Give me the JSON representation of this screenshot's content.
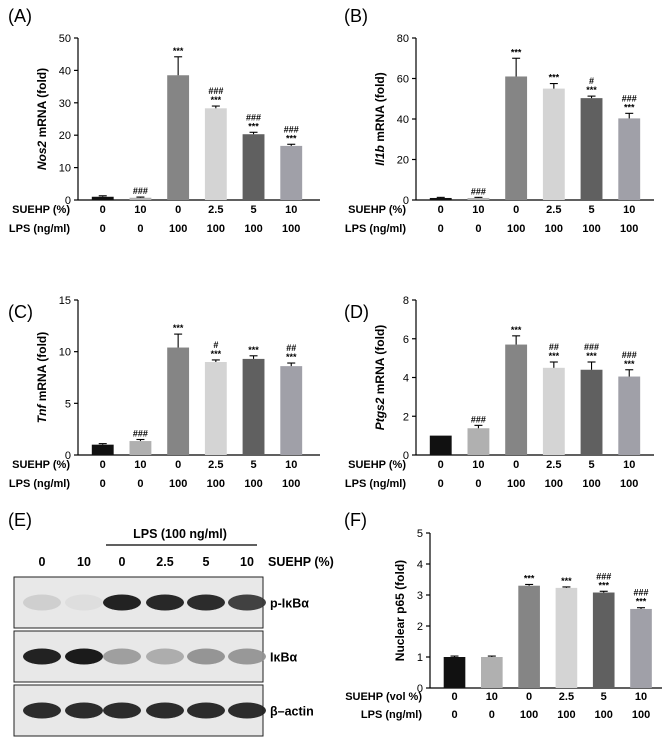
{
  "chart_data": [
    {
      "panel": "(A)",
      "type": "bar",
      "ylabel_italic": "Nos2",
      "ylabel_rest": " mRNA  (fold)",
      "ylim": [
        0,
        50
      ],
      "yticks": [
        "0",
        "10",
        "20",
        "30",
        "40",
        "50"
      ],
      "values": [
        1.0,
        0.7,
        38.5,
        28.3,
        20.3,
        16.7
      ],
      "errors": [
        0.3,
        0.2,
        5.7,
        0.7,
        0.6,
        0.5
      ],
      "sig_top": [
        "",
        "",
        "",
        "###",
        "###",
        "###"
      ],
      "sig_bottom": [
        "",
        "###",
        "***",
        "***",
        "***",
        "***"
      ],
      "colors": [
        "#111111",
        "#b0b0b0",
        "#858585",
        "#d4d4d4",
        "#606060",
        "#a0a0a8"
      ],
      "row_labels": [
        "SUEHP (%)",
        "LPS (ng/ml)"
      ],
      "row1": [
        "0",
        "10",
        "0",
        "2.5",
        "5",
        "10"
      ],
      "row2": [
        "0",
        "0",
        "100",
        "100",
        "100",
        "100"
      ]
    },
    {
      "panel": "(B)",
      "type": "bar",
      "ylabel_italic": "Il1b",
      "ylabel_rest": "  mRNA  (fold)",
      "ylim": [
        0,
        80
      ],
      "yticks": [
        "0",
        "20",
        "40",
        "60",
        "80"
      ],
      "values": [
        1.0,
        1.0,
        61.0,
        55.0,
        50.3,
        40.3
      ],
      "errors": [
        0.3,
        0.3,
        9.0,
        2.5,
        1.0,
        2.5
      ],
      "sig_top": [
        "",
        "",
        "",
        "",
        "#",
        "###"
      ],
      "sig_bottom": [
        "",
        "###",
        "***",
        "***",
        "***",
        "***"
      ],
      "colors": [
        "#111111",
        "#b0b0b0",
        "#858585",
        "#d4d4d4",
        "#606060",
        "#a0a0a8"
      ],
      "row_labels": [
        "SUEHP (%)",
        "LPS (ng/ml)"
      ],
      "row1": [
        "0",
        "10",
        "0",
        "2.5",
        "5",
        "10"
      ],
      "row2": [
        "0",
        "0",
        "100",
        "100",
        "100",
        "100"
      ]
    },
    {
      "panel": "(C)",
      "type": "bar",
      "ylabel_italic": "Tnf",
      "ylabel_rest": "  mRNA  (fold)",
      "ylim": [
        0,
        15
      ],
      "yticks": [
        "0",
        "5",
        "10",
        "15"
      ],
      "values": [
        1.0,
        1.35,
        10.4,
        9.0,
        9.3,
        8.6
      ],
      "errors": [
        0.1,
        0.15,
        1.3,
        0.2,
        0.3,
        0.3
      ],
      "sig_top": [
        "",
        "",
        "",
        "#",
        "",
        "##"
      ],
      "sig_bottom": [
        "",
        "###",
        "***",
        "***",
        "***",
        "***"
      ],
      "colors": [
        "#111111",
        "#b0b0b0",
        "#858585",
        "#d4d4d4",
        "#606060",
        "#a0a0a8"
      ],
      "row_labels": [
        "SUEHP (%)",
        "LPS (ng/ml)"
      ],
      "row1": [
        "0",
        "10",
        "0",
        "2.5",
        "5",
        "10"
      ],
      "row2": [
        "0",
        "0",
        "100",
        "100",
        "100",
        "100"
      ]
    },
    {
      "panel": "(D)",
      "type": "bar",
      "ylabel_italic": "Ptgs2",
      "ylabel_rest": "  mRNA  (fold)",
      "ylim": [
        0,
        8
      ],
      "yticks": [
        "0",
        "2",
        "4",
        "6",
        "8"
      ],
      "values": [
        1.0,
        1.38,
        5.7,
        4.5,
        4.4,
        4.05
      ],
      "errors": [
        0.0,
        0.15,
        0.45,
        0.3,
        0.4,
        0.35
      ],
      "sig_top": [
        "",
        "",
        "",
        "##",
        "###",
        "###"
      ],
      "sig_bottom": [
        "",
        "###",
        "***",
        "***",
        "***",
        "***"
      ],
      "colors": [
        "#111111",
        "#b0b0b0",
        "#858585",
        "#d4d4d4",
        "#606060",
        "#a0a0a8"
      ],
      "row_labels": [
        "SUEHP (%)",
        "LPS (ng/ml)"
      ],
      "row1": [
        "0",
        "10",
        "0",
        "2.5",
        "5",
        "10"
      ],
      "row2": [
        "0",
        "0",
        "100",
        "100",
        "100",
        "100"
      ]
    },
    {
      "panel": "(F)",
      "type": "bar",
      "ylabel_italic": "",
      "ylabel_rest": "Nuclear p65 (fold)",
      "ylim": [
        0,
        5
      ],
      "yticks": [
        "0",
        "1",
        "2",
        "3",
        "4",
        "5"
      ],
      "values": [
        1.0,
        1.0,
        3.3,
        3.23,
        3.08,
        2.55
      ],
      "errors": [
        0.03,
        0.03,
        0.04,
        0.03,
        0.04,
        0.04
      ],
      "sig_top": [
        "",
        "",
        "",
        "",
        "###",
        "###"
      ],
      "sig_bottom": [
        "",
        "",
        "***",
        "***",
        "***",
        "***"
      ],
      "colors": [
        "#111111",
        "#b0b0b0",
        "#858585",
        "#d4d4d4",
        "#606060",
        "#a0a0a8"
      ],
      "row_labels": [
        "SUEHP (vol %)",
        "LPS (ng/ml)"
      ],
      "row1": [
        "0",
        "10",
        "0",
        "2.5",
        "5",
        "10"
      ],
      "row2": [
        "0",
        "0",
        "100",
        "100",
        "100",
        "100"
      ]
    }
  ],
  "western_blot": {
    "panel": "(E)",
    "lps_header": "LPS (100 ng/ml)",
    "lane_labels": [
      "0",
      "10",
      "0",
      "2.5",
      "5",
      "10"
    ],
    "treatment_label": "SUEHP (%)",
    "blots": [
      {
        "label": "p-IκBα",
        "intensities": [
          0.12,
          0.05,
          0.95,
          0.92,
          0.9,
          0.8
        ]
      },
      {
        "label": "IκBα",
        "intensities": [
          0.95,
          0.98,
          0.35,
          0.28,
          0.4,
          0.38
        ]
      },
      {
        "label": "β–actin",
        "intensities": [
          0.9,
          0.9,
          0.9,
          0.9,
          0.9,
          0.9
        ]
      }
    ]
  }
}
